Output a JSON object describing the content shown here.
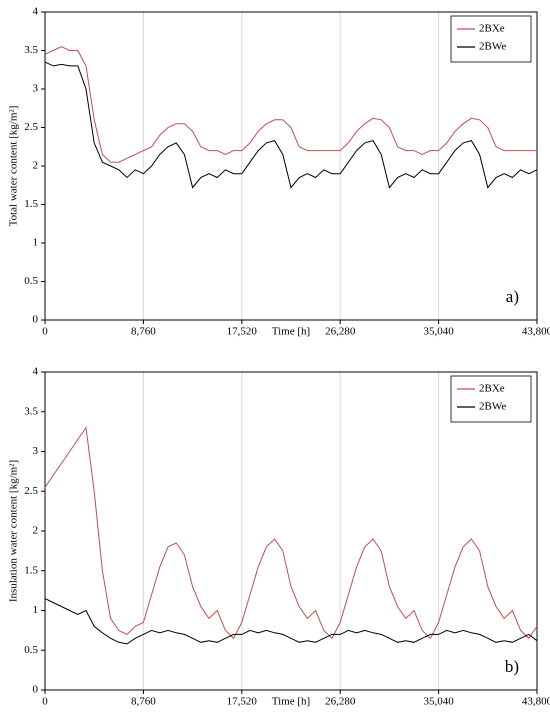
{
  "chart_data": [
    {
      "type": "line",
      "ylabel": "Total water content [kg/m²]",
      "xlabel": "Time [h]",
      "annotation": "a)",
      "x": [
        0,
        730,
        1460,
        2190,
        2920,
        3650,
        4380,
        5110,
        5840,
        6570,
        7300,
        8030,
        8760,
        9490,
        10220,
        10950,
        11680,
        12410,
        13140,
        13870,
        14600,
        15330,
        16060,
        16790,
        17520,
        18250,
        18980,
        19710,
        20440,
        21170,
        21900,
        22630,
        23360,
        24090,
        24820,
        25550,
        26280,
        27010,
        27740,
        28470,
        29200,
        29930,
        30660,
        31390,
        32120,
        32850,
        33580,
        34310,
        35040,
        35770,
        36500,
        37230,
        37960,
        38690,
        39420,
        40150,
        40880,
        41610,
        42340,
        43070,
        43800
      ],
      "series": [
        {
          "name": "2BXe",
          "color": "#c0504d",
          "values": [
            3.45,
            3.5,
            3.55,
            3.5,
            3.5,
            3.3,
            2.6,
            2.15,
            2.05,
            2.05,
            2.1,
            2.15,
            2.2,
            2.25,
            2.4,
            2.5,
            2.55,
            2.55,
            2.45,
            2.25,
            2.2,
            2.2,
            2.15,
            2.2,
            2.2,
            2.3,
            2.45,
            2.55,
            2.6,
            2.6,
            2.5,
            2.25,
            2.2,
            2.2,
            2.2,
            2.2,
            2.2,
            2.3,
            2.45,
            2.55,
            2.62,
            2.6,
            2.5,
            2.25,
            2.2,
            2.2,
            2.15,
            2.2,
            2.2,
            2.3,
            2.45,
            2.55,
            2.62,
            2.6,
            2.5,
            2.25,
            2.2,
            2.2,
            2.2,
            2.2,
            2.2
          ]
        },
        {
          "name": "2BWe",
          "color": "#000000",
          "values": [
            3.35,
            3.3,
            3.32,
            3.3,
            3.3,
            3.0,
            2.3,
            2.05,
            2.0,
            1.95,
            1.85,
            1.95,
            1.9,
            2.0,
            2.15,
            2.25,
            2.3,
            2.15,
            1.72,
            1.85,
            1.9,
            1.85,
            1.95,
            1.9,
            1.9,
            2.05,
            2.2,
            2.3,
            2.33,
            2.15,
            1.72,
            1.85,
            1.9,
            1.85,
            1.95,
            1.9,
            1.9,
            2.05,
            2.2,
            2.3,
            2.33,
            2.15,
            1.72,
            1.85,
            1.9,
            1.85,
            1.95,
            1.9,
            1.9,
            2.05,
            2.2,
            2.3,
            2.33,
            2.15,
            1.72,
            1.85,
            1.9,
            1.85,
            1.95,
            1.9,
            1.95
          ]
        }
      ],
      "xlim": [
        0,
        43800
      ],
      "xticks": [
        0,
        {
          "value": 8760,
          "label": "8,760"
        },
        {
          "value": 17520,
          "label": "17,520"
        },
        {
          "value": 26280,
          "label": "26,280"
        },
        {
          "value": 35040,
          "label": "35,040"
        },
        {
          "value": 43800,
          "label": "43,800"
        }
      ],
      "ylim": [
        0,
        4
      ],
      "yticks": [
        0,
        0.5,
        1,
        1.5,
        2,
        2.5,
        3,
        3.5,
        4
      ],
      "grid": "x",
      "legend": "upper right"
    },
    {
      "type": "line",
      "ylabel": "Insulation water content [kg/m²]",
      "xlabel": "Time [h]",
      "annotation": "b)",
      "x": [
        0,
        730,
        1460,
        2190,
        2920,
        3650,
        4380,
        5110,
        5840,
        6570,
        7300,
        8030,
        8760,
        9490,
        10220,
        10950,
        11680,
        12410,
        13140,
        13870,
        14600,
        15330,
        16060,
        16790,
        17520,
        18250,
        18980,
        19710,
        20440,
        21170,
        21900,
        22630,
        23360,
        24090,
        24820,
        25550,
        26280,
        27010,
        27740,
        28470,
        29200,
        29930,
        30660,
        31390,
        32120,
        32850,
        33580,
        34310,
        35040,
        35770,
        36500,
        37230,
        37960,
        38690,
        39420,
        40150,
        40880,
        41610,
        42340,
        43070,
        43800
      ],
      "series": [
        {
          "name": "2BXe",
          "color": "#c0504d",
          "values": [
            2.55,
            2.7,
            2.85,
            3.0,
            3.15,
            3.3,
            2.5,
            1.5,
            0.9,
            0.75,
            0.7,
            0.8,
            0.85,
            1.2,
            1.55,
            1.8,
            1.85,
            1.7,
            1.3,
            1.05,
            0.9,
            1.0,
            0.75,
            0.65,
            0.85,
            1.2,
            1.55,
            1.8,
            1.9,
            1.75,
            1.3,
            1.05,
            0.9,
            1.0,
            0.75,
            0.65,
            0.85,
            1.2,
            1.55,
            1.8,
            1.9,
            1.75,
            1.3,
            1.05,
            0.9,
            1.0,
            0.75,
            0.65,
            0.85,
            1.2,
            1.55,
            1.8,
            1.9,
            1.75,
            1.3,
            1.05,
            0.9,
            1.0,
            0.75,
            0.65,
            0.8
          ]
        },
        {
          "name": "2BWe",
          "color": "#000000",
          "values": [
            1.15,
            1.1,
            1.05,
            1.0,
            0.95,
            1.0,
            0.8,
            0.72,
            0.65,
            0.6,
            0.58,
            0.65,
            0.7,
            0.75,
            0.72,
            0.75,
            0.72,
            0.7,
            0.65,
            0.6,
            0.62,
            0.6,
            0.65,
            0.7,
            0.7,
            0.75,
            0.72,
            0.75,
            0.72,
            0.7,
            0.65,
            0.6,
            0.62,
            0.6,
            0.65,
            0.7,
            0.7,
            0.75,
            0.72,
            0.75,
            0.72,
            0.7,
            0.65,
            0.6,
            0.62,
            0.6,
            0.65,
            0.7,
            0.7,
            0.75,
            0.72,
            0.75,
            0.72,
            0.7,
            0.65,
            0.6,
            0.62,
            0.6,
            0.65,
            0.7,
            0.62
          ]
        }
      ],
      "xlim": [
        0,
        43800
      ],
      "xticks": [
        0,
        {
          "value": 8760,
          "label": "8,760"
        },
        {
          "value": 17520,
          "label": "17,520"
        },
        {
          "value": 26280,
          "label": "26,280"
        },
        {
          "value": 35040,
          "label": "35,040"
        },
        {
          "value": 43800,
          "label": "43,800"
        }
      ],
      "ylim": [
        0,
        4
      ],
      "yticks": [
        0,
        0.5,
        1,
        1.5,
        2,
        2.5,
        3,
        3.5,
        4
      ],
      "grid": "x",
      "legend": "upper right"
    }
  ]
}
